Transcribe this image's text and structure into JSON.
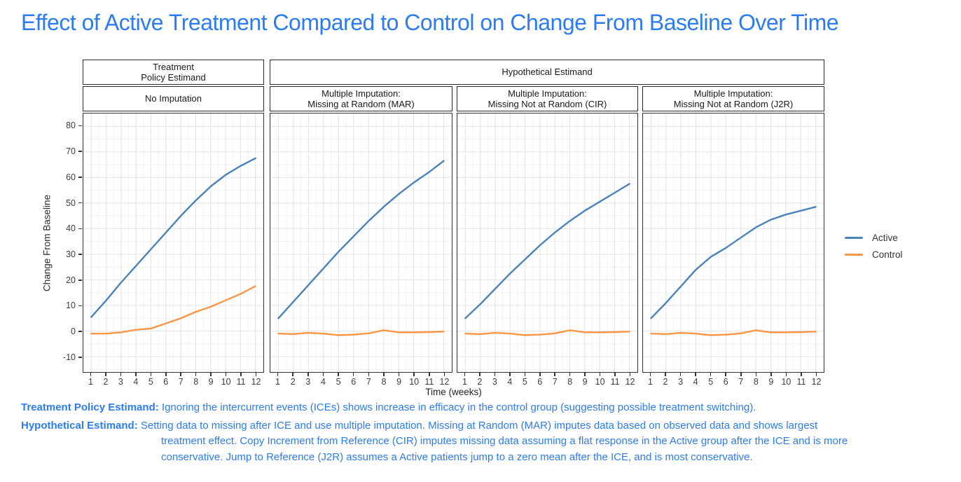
{
  "title": "Effect of Active Treatment Compared to Control on Change From Baseline Over Time",
  "colors": {
    "title": "#2b7cf2",
    "caption": "#2b7cf2",
    "active": "#4a82ba",
    "control": "#f99746",
    "grid_major": "#e6e6e6",
    "grid_minor": "#f3f3f3"
  },
  "chart_data": {
    "type": "line",
    "x": [
      1,
      2,
      3,
      4,
      5,
      6,
      7,
      8,
      9,
      10,
      11,
      12
    ],
    "xlabel": "Time (weeks)",
    "ylabel": "Change From Baseline",
    "ylim": [
      -16,
      85
    ],
    "yticks": [
      -10,
      0,
      10,
      20,
      30,
      40,
      50,
      60,
      70,
      80
    ],
    "grid": true,
    "legend_position": "right",
    "facet_top": [
      {
        "label": "Treatment\nPolicy Estimand",
        "span": 1
      },
      {
        "label": "Hypothetical Estimand",
        "span": 3
      }
    ],
    "panels": [
      {
        "label": "No Imputation",
        "series": [
          {
            "name": "Active",
            "values": [
              5.5,
              12,
              19,
              25.5,
              32,
              38.5,
              45,
              51,
              56.5,
              61,
              64.5,
              67.5
            ]
          },
          {
            "name": "Control",
            "values": [
              -1,
              -1,
              -0.5,
              0.5,
              1,
              3,
              5,
              7.5,
              9.5,
              12,
              14.5,
              17.5
            ]
          }
        ]
      },
      {
        "label": "Multiple Imputation:\nMissing at Random (MAR)",
        "series": [
          {
            "name": "Active",
            "values": [
              5,
              11.5,
              18,
              24.5,
              31,
              37,
              43,
              48.5,
              53.5,
              58,
              62,
              66.5
            ]
          },
          {
            "name": "Control",
            "values": [
              -1,
              -1.2,
              -0.7,
              -1,
              -1.6,
              -1.4,
              -0.9,
              0.3,
              -0.5,
              -0.5,
              -0.4,
              -0.2
            ]
          }
        ]
      },
      {
        "label": "Multiple Imputation:\nMissing Not at Random (CIR)",
        "series": [
          {
            "name": "Active",
            "values": [
              5,
              10.5,
              16.5,
              22.5,
              28,
              33.5,
              38.5,
              43,
              47,
              50.5,
              54,
              57.5
            ]
          },
          {
            "name": "Control",
            "values": [
              -1,
              -1.2,
              -0.7,
              -1,
              -1.6,
              -1.4,
              -0.9,
              0.3,
              -0.5,
              -0.5,
              -0.4,
              -0.2
            ]
          }
        ]
      },
      {
        "label": "Multiple Imputation:\nMissing Not at Random (J2R)",
        "series": [
          {
            "name": "Active",
            "values": [
              5,
              11,
              17.5,
              24,
              29,
              32.5,
              36.5,
              40.5,
              43.5,
              45.5,
              47,
              48.5
            ]
          },
          {
            "name": "Control",
            "values": [
              -1,
              -1.2,
              -0.7,
              -1,
              -1.6,
              -1.4,
              -0.9,
              0.3,
              -0.5,
              -0.5,
              -0.4,
              -0.2
            ]
          }
        ]
      }
    ],
    "legend": [
      {
        "name": "Active",
        "color": "#4a82ba"
      },
      {
        "name": "Control",
        "color": "#f99746"
      }
    ]
  },
  "captions": [
    {
      "label": "Treatment Policy Estimand:",
      "text": "Ignoring the intercurrent events (ICEs) shows increase in efficacy in the control group (suggesting possible treatment switching)."
    },
    {
      "label": "Hypothetical Estimand:",
      "text": "Setting data to missing after ICE and use multiple imputation. Missing at Random (MAR) imputes data based on observed data and shows largest treatment effect. Copy Increment from Reference (CIR) imputes missing data assuming a flat response in the Active group after the ICE and is more conservative. Jump to Reference (J2R) assumes a Active patients jump to a zero mean after the ICE, and is most conservative."
    }
  ]
}
